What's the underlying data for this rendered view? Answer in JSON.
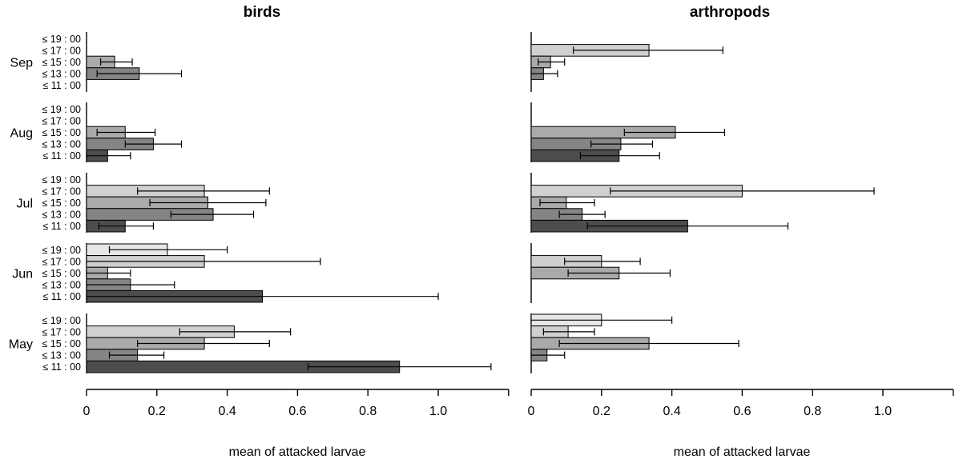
{
  "chart_data": [
    {
      "type": "bar",
      "orientation": "horizontal",
      "title": "birds",
      "xlabel": "mean of attacked larvae",
      "xlim": [
        0,
        1.2
      ],
      "xticks": [
        "0",
        "0.2",
        "0.4",
        "0.6",
        "0.8",
        "1.0"
      ],
      "groups": [
        {
          "label": "Sep",
          "bars": [
            {
              "time": "≤ 19 : 00",
              "value": null
            },
            {
              "time": "≤ 17 : 00",
              "value": null
            },
            {
              "time": "≤ 15 : 00",
              "value": 0.08,
              "err_low": 0.04,
              "err_high": 0.13
            },
            {
              "time": "≤ 13 : 00",
              "value": 0.15,
              "err_low": 0.03,
              "err_high": 0.27
            },
            {
              "time": "≤ 11 : 00",
              "value": null
            }
          ]
        },
        {
          "label": "Aug",
          "bars": [
            {
              "time": "≤ 19 : 00",
              "value": null
            },
            {
              "time": "≤ 17 : 00",
              "value": null
            },
            {
              "time": "≤ 15 : 00",
              "value": 0.11,
              "err_low": 0.03,
              "err_high": 0.195
            },
            {
              "time": "≤ 13 : 00",
              "value": 0.19,
              "err_low": 0.11,
              "err_high": 0.27
            },
            {
              "time": "≤ 11 : 00",
              "value": 0.06,
              "err_low": 0.0,
              "err_high": 0.125
            }
          ]
        },
        {
          "label": "Jul",
          "bars": [
            {
              "time": "≤ 19 : 00",
              "value": null
            },
            {
              "time": "≤ 17 : 00",
              "value": 0.335,
              "err_low": 0.145,
              "err_high": 0.52
            },
            {
              "time": "≤ 15 : 00",
              "value": 0.345,
              "err_low": 0.18,
              "err_high": 0.51
            },
            {
              "time": "≤ 13 : 00",
              "value": 0.36,
              "err_low": 0.24,
              "err_high": 0.475
            },
            {
              "time": "≤ 11 : 00",
              "value": 0.11,
              "err_low": 0.035,
              "err_high": 0.19
            }
          ]
        },
        {
          "label": "Jun",
          "bars": [
            {
              "time": "≤ 19 : 00",
              "value": 0.23,
              "err_low": 0.065,
              "err_high": 0.4
            },
            {
              "time": "≤ 17 : 00",
              "value": 0.335,
              "err_low": 0.0,
              "err_high": 0.665
            },
            {
              "time": "≤ 15 : 00",
              "value": 0.06,
              "err_low": 0.0,
              "err_high": 0.125
            },
            {
              "time": "≤ 13 : 00",
              "value": 0.125,
              "err_low": 0.0,
              "err_high": 0.25
            },
            {
              "time": "≤ 11 : 00",
              "value": 0.5,
              "err_low": 0.0,
              "err_high": 1.0
            }
          ]
        },
        {
          "label": "May",
          "bars": [
            {
              "time": "≤ 19 : 00",
              "value": null
            },
            {
              "time": "≤ 17 : 00",
              "value": 0.42,
              "err_low": 0.265,
              "err_high": 0.58
            },
            {
              "time": "≤ 15 : 00",
              "value": 0.335,
              "err_low": 0.145,
              "err_high": 0.52
            },
            {
              "time": "≤ 13 : 00",
              "value": 0.145,
              "err_low": 0.065,
              "err_high": 0.22
            },
            {
              "time": "≤ 11 : 00",
              "value": 0.89,
              "err_low": 0.63,
              "err_high": 1.15
            }
          ]
        }
      ]
    },
    {
      "type": "bar",
      "orientation": "horizontal",
      "title": "arthropods",
      "xlabel": "mean of attacked larvae",
      "xlim": [
        0,
        1.2
      ],
      "xticks": [
        "0",
        "0.2",
        "0.4",
        "0.6",
        "0.8",
        "1.0"
      ],
      "groups": [
        {
          "label": "",
          "bars": [
            {
              "time": "",
              "value": null
            },
            {
              "time": "",
              "value": 0.335,
              "err_low": 0.12,
              "err_high": 0.545
            },
            {
              "time": "",
              "value": 0.055,
              "err_low": 0.02,
              "err_high": 0.095
            },
            {
              "time": "",
              "value": 0.035,
              "err_low": 0.0,
              "err_high": 0.075
            },
            {
              "time": "",
              "value": null
            }
          ]
        },
        {
          "label": "",
          "bars": [
            {
              "time": "",
              "value": null
            },
            {
              "time": "",
              "value": null
            },
            {
              "time": "",
              "value": 0.41,
              "err_low": 0.265,
              "err_high": 0.55
            },
            {
              "time": "",
              "value": 0.255,
              "err_low": 0.17,
              "err_high": 0.345
            },
            {
              "time": "",
              "value": 0.25,
              "err_low": 0.14,
              "err_high": 0.365
            }
          ]
        },
        {
          "label": "",
          "bars": [
            {
              "time": "",
              "value": null
            },
            {
              "time": "",
              "value": 0.6,
              "err_low": 0.225,
              "err_high": 0.975
            },
            {
              "time": "",
              "value": 0.1,
              "err_low": 0.025,
              "err_high": 0.18
            },
            {
              "time": "",
              "value": 0.145,
              "err_low": 0.08,
              "err_high": 0.21
            },
            {
              "time": "",
              "value": 0.445,
              "err_low": 0.16,
              "err_high": 0.73
            }
          ]
        },
        {
          "label": "",
          "bars": [
            {
              "time": "",
              "value": null
            },
            {
              "time": "",
              "value": 0.2,
              "err_low": 0.095,
              "err_high": 0.31
            },
            {
              "time": "",
              "value": 0.25,
              "err_low": 0.105,
              "err_high": 0.395
            },
            {
              "time": "",
              "value": null
            },
            {
              "time": "",
              "value": null
            }
          ]
        },
        {
          "label": "",
          "bars": [
            {
              "time": "",
              "value": 0.2,
              "err_low": 0.0,
              "err_high": 0.4
            },
            {
              "time": "",
              "value": 0.105,
              "err_low": 0.035,
              "err_high": 0.18
            },
            {
              "time": "",
              "value": 0.335,
              "err_low": 0.08,
              "err_high": 0.59
            },
            {
              "time": "",
              "value": 0.045,
              "err_low": 0.0,
              "err_high": 0.095
            },
            {
              "time": "",
              "value": null
            }
          ]
        }
      ]
    }
  ],
  "colors": {
    "≤ 19 : 00": "#e6e6e6",
    "≤ 17 : 00": "#d0d0d0",
    "≤ 15 : 00": "#aaaaaa",
    "≤ 13 : 00": "#858585",
    "≤ 11 : 00": "#4d4d4d"
  },
  "time_order": [
    "≤ 19 : 00",
    "≤ 17 : 00",
    "≤ 15 : 00",
    "≤ 13 : 00",
    "≤ 11 : 00"
  ]
}
